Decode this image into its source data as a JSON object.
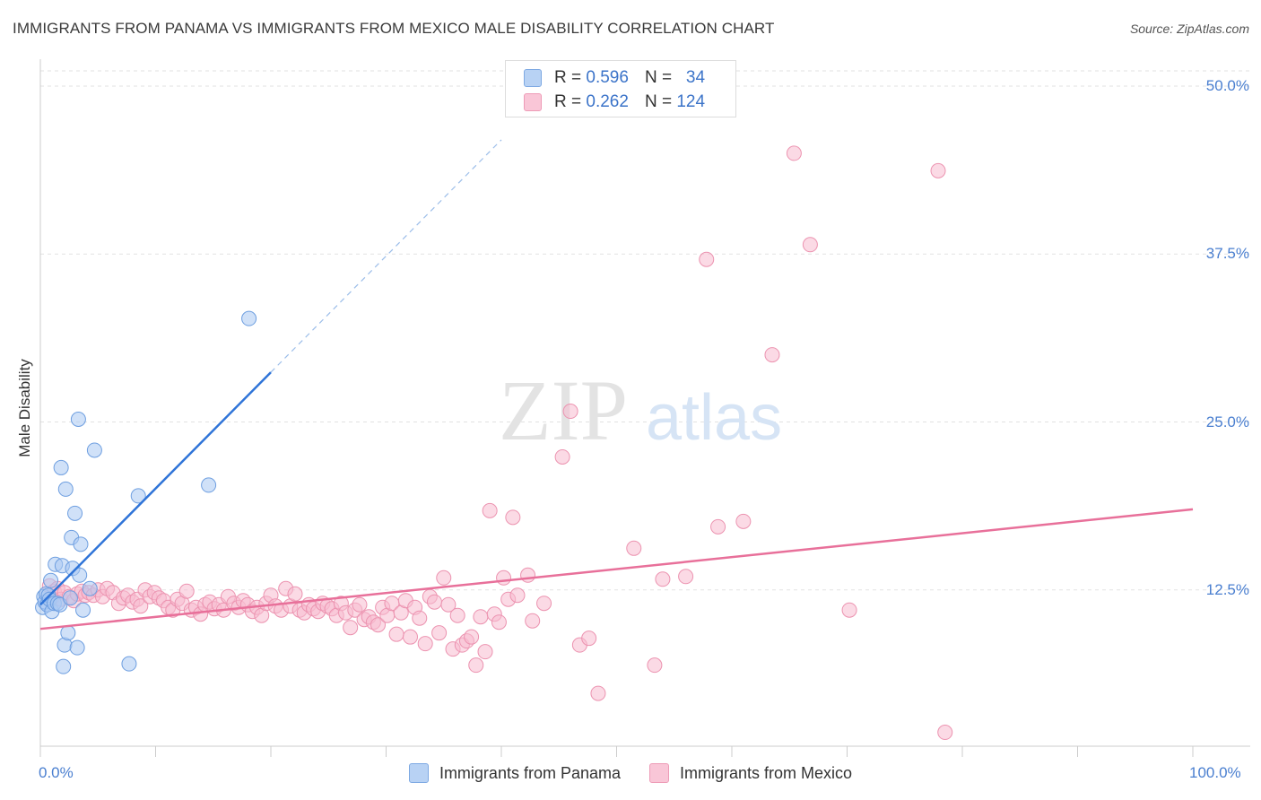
{
  "header": {
    "title": "IMMIGRANTS FROM PANAMA VS IMMIGRANTS FROM MEXICO MALE DISABILITY CORRELATION CHART",
    "source": "Source: ZipAtlas.com"
  },
  "watermark": {
    "zip": "ZIP",
    "atlas": "atlas"
  },
  "legend_top": {
    "rows": [
      {
        "r_label": "R =",
        "r_value": "0.596",
        "n_label": "N =",
        "n_value": "34"
      },
      {
        "r_label": "R =",
        "r_value": "0.262",
        "n_label": "N =",
        "n_value": "124"
      }
    ]
  },
  "legend_bottom": {
    "panama": "Immigrants from Panama",
    "mexico": "Immigrants from Mexico"
  },
  "chart_data": {
    "type": "scatter",
    "title": "IMMIGRANTS FROM PANAMA VS IMMIGRANTS FROM MEXICO MALE DISABILITY CORRELATION CHART",
    "xlabel": "",
    "ylabel": "Male Disability",
    "xlim": [
      0,
      100
    ],
    "ylim": [
      0,
      52
    ],
    "grid": true,
    "legend_position": "top-center",
    "y_ticks": [
      {
        "value": 12.5,
        "label": "12.5%"
      },
      {
        "value": 25.0,
        "label": "25.0%"
      },
      {
        "value": 37.5,
        "label": "37.5%"
      },
      {
        "value": 50.0,
        "label": "50.0%"
      }
    ],
    "x_ticks": [
      {
        "value": 0,
        "label": "0.0%"
      },
      {
        "value": 100,
        "label": "100.0%"
      }
    ],
    "colors": {
      "panama_fill": "#a9c8f2",
      "panama_stroke": "#6d9ee0",
      "panama_line": "#2f74d8",
      "mexico_fill": "#f7bcd0",
      "mexico_stroke": "#ec93b0",
      "mexico_line": "#e8709a"
    },
    "series": [
      {
        "name": "Immigrants from Panama",
        "R": 0.596,
        "N": 34,
        "trend": {
          "x0": 0,
          "y0": 11.4,
          "x1": 20,
          "y1": 28.7,
          "dash_to_x": 40
        },
        "points": [
          [
            0.2,
            11.2
          ],
          [
            0.3,
            12.0
          ],
          [
            0.4,
            11.6
          ],
          [
            0.5,
            12.2
          ],
          [
            0.6,
            11.4
          ],
          [
            0.7,
            12.1
          ],
          [
            0.8,
            11.8
          ],
          [
            0.9,
            13.2
          ],
          [
            1.0,
            10.9
          ],
          [
            1.2,
            11.5
          ],
          [
            1.3,
            14.4
          ],
          [
            1.5,
            11.5
          ],
          [
            1.7,
            11.4
          ],
          [
            1.8,
            21.6
          ],
          [
            1.9,
            14.3
          ],
          [
            2.0,
            6.8
          ],
          [
            2.1,
            8.4
          ],
          [
            2.2,
            20.0
          ],
          [
            2.4,
            9.3
          ],
          [
            2.6,
            11.9
          ],
          [
            2.7,
            16.4
          ],
          [
            2.8,
            14.1
          ],
          [
            3.0,
            18.2
          ],
          [
            3.2,
            8.2
          ],
          [
            3.3,
            25.2
          ],
          [
            3.4,
            13.6
          ],
          [
            3.5,
            15.9
          ],
          [
            3.7,
            11.0
          ],
          [
            4.3,
            12.6
          ],
          [
            4.7,
            22.9
          ],
          [
            7.7,
            7.0
          ],
          [
            8.5,
            19.5
          ],
          [
            14.6,
            20.3
          ],
          [
            18.1,
            32.7
          ]
        ]
      },
      {
        "name": "Immigrants from Mexico",
        "R": 0.262,
        "N": 124,
        "trend": {
          "x0": 0,
          "y0": 9.6,
          "x1": 100,
          "y1": 18.5
        },
        "points": [
          [
            0.8,
            12.8
          ],
          [
            1.0,
            11.9
          ],
          [
            1.2,
            12.4
          ],
          [
            1.5,
            12.6
          ],
          [
            1.8,
            11.8
          ],
          [
            2.1,
            12.3
          ],
          [
            2.5,
            12.0
          ],
          [
            2.9,
            11.7
          ],
          [
            3.2,
            12.2
          ],
          [
            3.6,
            12.4
          ],
          [
            3.9,
            12.1
          ],
          [
            4.2,
            12.3
          ],
          [
            4.6,
            12.1
          ],
          [
            5.0,
            12.5
          ],
          [
            5.4,
            12.0
          ],
          [
            5.8,
            12.6
          ],
          [
            6.3,
            12.3
          ],
          [
            6.8,
            11.5
          ],
          [
            7.2,
            11.9
          ],
          [
            7.6,
            12.1
          ],
          [
            8.0,
            11.6
          ],
          [
            8.4,
            11.8
          ],
          [
            8.7,
            11.3
          ],
          [
            9.1,
            12.5
          ],
          [
            9.5,
            12.0
          ],
          [
            9.9,
            12.3
          ],
          [
            10.3,
            11.9
          ],
          [
            10.7,
            11.7
          ],
          [
            11.1,
            11.2
          ],
          [
            11.5,
            11.0
          ],
          [
            11.9,
            11.8
          ],
          [
            12.3,
            11.5
          ],
          [
            12.7,
            12.4
          ],
          [
            13.1,
            11.0
          ],
          [
            13.5,
            11.2
          ],
          [
            13.9,
            10.7
          ],
          [
            14.3,
            11.4
          ],
          [
            14.7,
            11.6
          ],
          [
            15.1,
            11.1
          ],
          [
            15.5,
            11.4
          ],
          [
            15.9,
            11.0
          ],
          [
            16.3,
            12.0
          ],
          [
            16.8,
            11.5
          ],
          [
            17.2,
            11.2
          ],
          [
            17.6,
            11.7
          ],
          [
            18.0,
            11.4
          ],
          [
            18.4,
            10.9
          ],
          [
            18.8,
            11.2
          ],
          [
            19.2,
            10.6
          ],
          [
            19.6,
            11.5
          ],
          [
            20.0,
            12.1
          ],
          [
            20.4,
            11.3
          ],
          [
            20.9,
            11.0
          ],
          [
            21.3,
            12.6
          ],
          [
            21.7,
            11.3
          ],
          [
            22.1,
            12.2
          ],
          [
            22.5,
            11.0
          ],
          [
            22.9,
            10.8
          ],
          [
            23.3,
            11.4
          ],
          [
            23.7,
            11.1
          ],
          [
            24.1,
            10.9
          ],
          [
            24.5,
            11.5
          ],
          [
            24.9,
            11.3
          ],
          [
            25.3,
            11.1
          ],
          [
            25.7,
            10.6
          ],
          [
            26.1,
            11.5
          ],
          [
            26.5,
            10.8
          ],
          [
            26.9,
            9.7
          ],
          [
            27.3,
            11.0
          ],
          [
            27.7,
            11.4
          ],
          [
            28.1,
            10.3
          ],
          [
            28.5,
            10.5
          ],
          [
            28.9,
            10.1
          ],
          [
            29.3,
            9.9
          ],
          [
            29.7,
            11.2
          ],
          [
            30.1,
            10.6
          ],
          [
            30.5,
            11.5
          ],
          [
            30.9,
            9.2
          ],
          [
            31.3,
            10.8
          ],
          [
            31.7,
            11.7
          ],
          [
            32.1,
            9.0
          ],
          [
            32.5,
            11.2
          ],
          [
            32.9,
            10.4
          ],
          [
            33.4,
            8.5
          ],
          [
            33.8,
            12.0
          ],
          [
            34.2,
            11.6
          ],
          [
            34.6,
            9.3
          ],
          [
            35.0,
            13.4
          ],
          [
            35.4,
            11.4
          ],
          [
            35.8,
            8.1
          ],
          [
            36.2,
            10.6
          ],
          [
            36.6,
            8.4
          ],
          [
            37.0,
            8.7
          ],
          [
            37.4,
            9.0
          ],
          [
            37.8,
            6.9
          ],
          [
            38.2,
            10.5
          ],
          [
            38.6,
            7.9
          ],
          [
            39.0,
            18.4
          ],
          [
            39.4,
            10.7
          ],
          [
            39.8,
            10.1
          ],
          [
            40.2,
            13.4
          ],
          [
            40.6,
            11.8
          ],
          [
            41.0,
            17.9
          ],
          [
            41.4,
            12.1
          ],
          [
            42.3,
            13.6
          ],
          [
            42.7,
            10.2
          ],
          [
            43.7,
            11.5
          ],
          [
            45.3,
            22.4
          ],
          [
            46.0,
            25.8
          ],
          [
            46.8,
            8.4
          ],
          [
            47.6,
            8.9
          ],
          [
            48.4,
            4.8
          ],
          [
            51.5,
            15.6
          ],
          [
            53.3,
            6.9
          ],
          [
            54.0,
            13.3
          ],
          [
            56.0,
            13.5
          ],
          [
            57.8,
            37.1
          ],
          [
            58.8,
            17.2
          ],
          [
            61.0,
            17.6
          ],
          [
            63.5,
            30.0
          ],
          [
            65.4,
            45.0
          ],
          [
            66.8,
            38.2
          ],
          [
            70.2,
            11.0
          ],
          [
            77.9,
            43.7
          ],
          [
            78.5,
            1.9
          ]
        ]
      }
    ]
  }
}
